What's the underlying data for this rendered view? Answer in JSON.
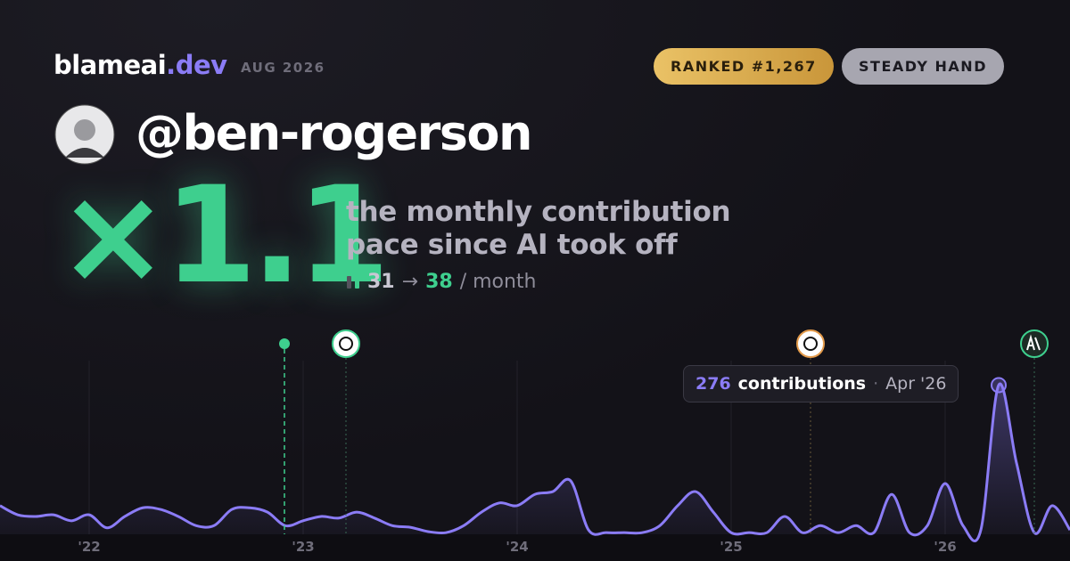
{
  "header": {
    "brand": "blameai",
    "brand_suffix": ".dev",
    "date": "AUG 2026",
    "rank_badge": "RANKED #1,267",
    "title_badge": "STEADY HAND",
    "handle": "@ben-rogerson",
    "multiplier": "×1.1",
    "description_line_1": "the monthly contribution",
    "description_line_2": "pace since AI took off",
    "pace_from": "31",
    "pace_arrow": "→",
    "pace_to": "38",
    "pace_unit": "/ month"
  },
  "chart_data": {
    "type": "line",
    "x": [
      2021.5833,
      2021.6667,
      2021.75,
      2021.8333,
      2021.9167,
      2022.0,
      2022.0833,
      2022.1667,
      2022.25,
      2022.3333,
      2022.4167,
      2022.5,
      2022.5833,
      2022.6667,
      2022.75,
      2022.8333,
      2022.9167,
      2023.0,
      2023.0833,
      2023.1667,
      2023.25,
      2023.3333,
      2023.4167,
      2023.5,
      2023.5833,
      2023.6667,
      2023.75,
      2023.8333,
      2023.9167,
      2024.0,
      2024.0833,
      2024.1667,
      2024.25,
      2024.3333,
      2024.4167,
      2024.5,
      2024.5833,
      2024.6667,
      2024.75,
      2024.8333,
      2024.9167,
      2025.0,
      2025.0833,
      2025.1667,
      2025.25,
      2025.3333,
      2025.4167,
      2025.5,
      2025.5833,
      2025.6667,
      2025.75,
      2025.8333,
      2025.9167,
      2026.0,
      2026.0833,
      2026.1667,
      2026.25,
      2026.3333,
      2026.4167,
      2026.5,
      2026.5833
    ],
    "series": [
      {
        "color": "#8b7cf6",
        "values": [
          53,
          36,
          33,
          36,
          25,
          36,
          12,
          33,
          49,
          46,
          33,
          16,
          16,
          46,
          49,
          41,
          16,
          25,
          33,
          30,
          41,
          30,
          16,
          13,
          5,
          3,
          16,
          41,
          58,
          53,
          74,
          79,
          99,
          8,
          3,
          3,
          3,
          16,
          53,
          79,
          41,
          3,
          3,
          3,
          33,
          3,
          16,
          3,
          16,
          3,
          74,
          3,
          16,
          94,
          16,
          8,
          276,
          132,
          3,
          53,
          8
        ]
      }
    ],
    "xlim": [
      2021.5833,
      2026.5833
    ],
    "xticks": [
      {
        "value": 2022,
        "label": "'22"
      },
      {
        "value": 2023,
        "label": "'23"
      },
      {
        "value": 2024,
        "label": "'24"
      },
      {
        "value": 2025,
        "label": "'25"
      },
      {
        "value": 2026,
        "label": "'26"
      }
    ],
    "ylim": [
      0,
      290
    ],
    "grid": true,
    "tooltip": {
      "label": "contributions",
      "date": "Apr '26"
    }
  }
}
